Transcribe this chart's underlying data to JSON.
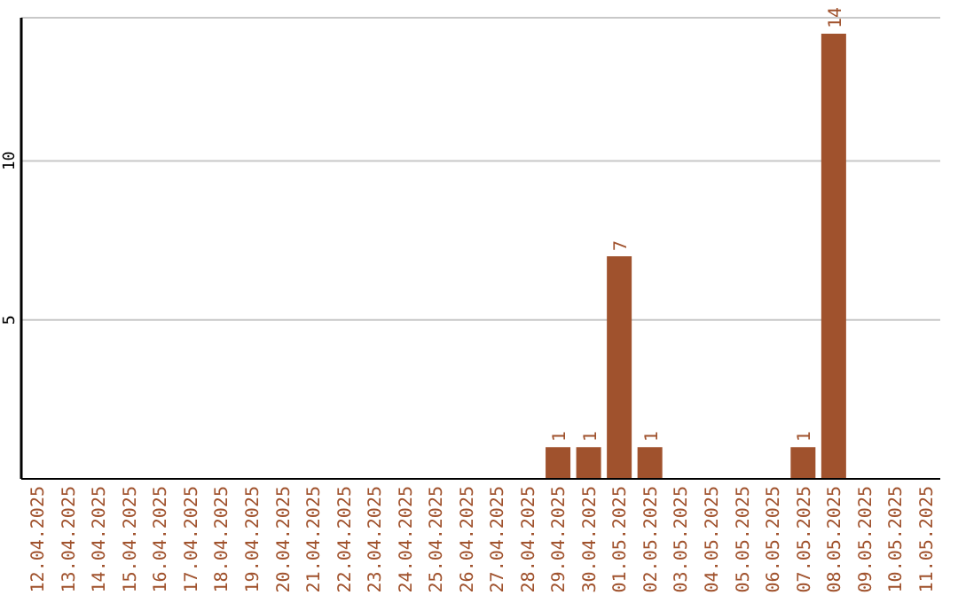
{
  "chart_data": {
    "type": "bar",
    "categories": [
      "12.04.2025",
      "13.04.2025",
      "14.04.2025",
      "15.04.2025",
      "16.04.2025",
      "17.04.2025",
      "18.04.2025",
      "19.04.2025",
      "20.04.2025",
      "21.04.2025",
      "22.04.2025",
      "23.04.2025",
      "24.04.2025",
      "25.04.2025",
      "26.04.2025",
      "27.04.2025",
      "28.04.2025",
      "29.04.2025",
      "30.04.2025",
      "01.05.2025",
      "02.05.2025",
      "03.05.2025",
      "04.05.2025",
      "05.05.2025",
      "06.05.2025",
      "07.05.2025",
      "08.05.2025",
      "09.05.2025",
      "10.05.2025",
      "11.05.2025"
    ],
    "values": [
      0,
      0,
      0,
      0,
      0,
      0,
      0,
      0,
      0,
      0,
      0,
      0,
      0,
      0,
      0,
      0,
      0,
      1,
      1,
      7,
      1,
      0,
      0,
      0,
      0,
      1,
      14,
      0,
      0,
      0
    ],
    "value_labels": [
      null,
      null,
      null,
      null,
      null,
      null,
      null,
      null,
      null,
      null,
      null,
      null,
      null,
      null,
      null,
      null,
      null,
      "1",
      "1",
      "7",
      "1",
      null,
      null,
      null,
      null,
      "1",
      "14",
      null,
      null,
      null
    ],
    "color": "#a0522d",
    "ylim": [
      0,
      14.5
    ],
    "yticks": [
      5,
      10
    ],
    "grid": "y",
    "legend": false
  }
}
